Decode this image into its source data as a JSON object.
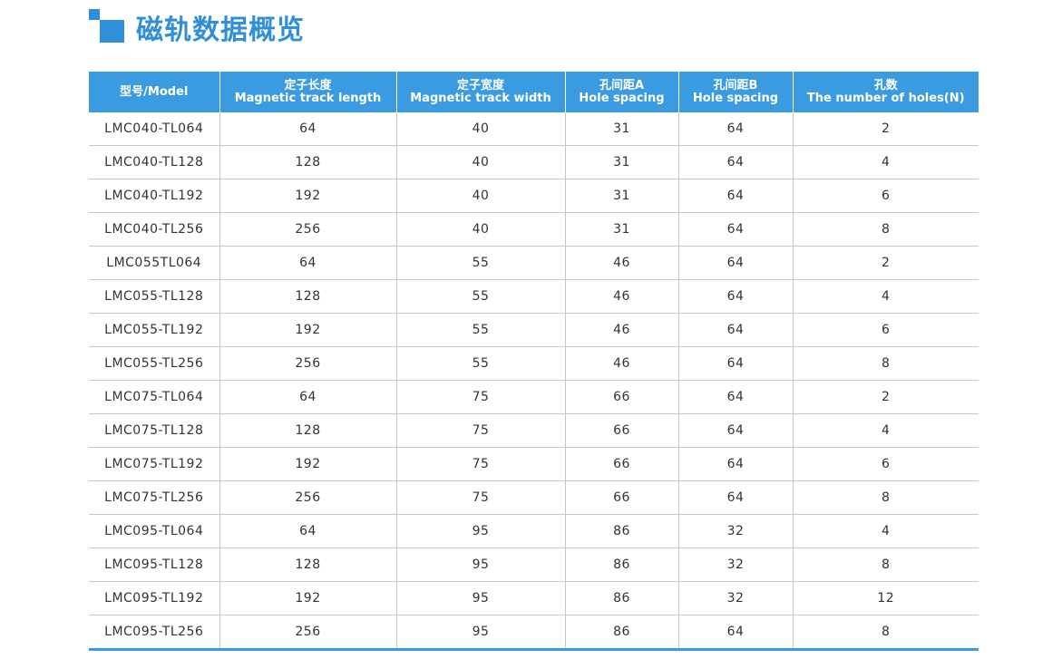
{
  "header": {
    "title": "磁轨数据概览"
  },
  "table": {
    "columns": [
      [
        "型号/Model"
      ],
      [
        "定子长度",
        "Magnetic track length"
      ],
      [
        "定子宽度",
        "Magnetic track width"
      ],
      [
        "孔间距A",
        "Hole spacing"
      ],
      [
        "孔间距B",
        "Hole spacing"
      ],
      [
        "孔数",
        "The number of holes(N)"
      ]
    ],
    "rows": [
      [
        "LMC040-TL064",
        64,
        40,
        31,
        64,
        2
      ],
      [
        "LMC040-TL128",
        128,
        40,
        31,
        64,
        4
      ],
      [
        "LMC040-TL192",
        192,
        40,
        31,
        64,
        6
      ],
      [
        "LMC040-TL256",
        256,
        40,
        31,
        64,
        8
      ],
      [
        "LMC055TL064",
        64,
        55,
        46,
        64,
        2
      ],
      [
        "LMC055-TL128",
        128,
        55,
        46,
        64,
        4
      ],
      [
        "LMC055-TL192",
        192,
        55,
        46,
        64,
        6
      ],
      [
        "LMC055-TL256",
        256,
        55,
        46,
        64,
        8
      ],
      [
        "LMC075-TL064",
        64,
        75,
        66,
        64,
        2
      ],
      [
        "LMC075-TL128",
        128,
        75,
        66,
        64,
        4
      ],
      [
        "LMC075-TL192",
        192,
        75,
        66,
        64,
        6
      ],
      [
        "LMC075-TL256",
        256,
        75,
        66,
        64,
        8
      ],
      [
        "LMC095-TL064",
        64,
        95,
        86,
        32,
        4
      ],
      [
        "LMC095-TL128",
        128,
        95,
        86,
        32,
        8
      ],
      [
        "LMC095-TL192",
        192,
        95,
        86,
        32,
        12
      ],
      [
        "LMC095-TL256",
        256,
        95,
        86,
        64,
        8
      ]
    ]
  }
}
